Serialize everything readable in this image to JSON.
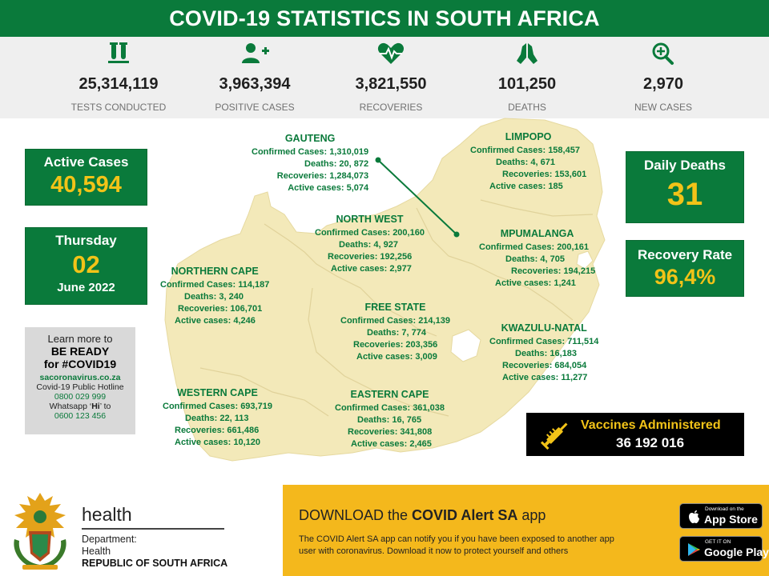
{
  "header": {
    "title": "COVID-19 STATISTICS IN SOUTH AFRICA"
  },
  "stats": [
    {
      "icon": "test-tubes-icon",
      "value": "25,314,119",
      "label": "TESTS CONDUCTED"
    },
    {
      "icon": "add-person-icon",
      "value": "3,963,394",
      "label": "POSITIVE CASES"
    },
    {
      "icon": "heartbeat-icon",
      "value": "3,821,550",
      "label": "RECOVERIES"
    },
    {
      "icon": "praying-hands-icon",
      "value": "101,250",
      "label": "DEATHS"
    },
    {
      "icon": "zoom-plus-icon",
      "value": "2,970",
      "label": "NEW CASES"
    }
  ],
  "active": {
    "title": "Active Cases",
    "value": "40,594"
  },
  "date": {
    "weekday": "Thursday",
    "day": "02",
    "month_year": "June  2022"
  },
  "daily_deaths": {
    "title": "Daily Deaths",
    "value": "31"
  },
  "recovery_rate": {
    "title": "Recovery Rate",
    "value": "96,4%"
  },
  "info": {
    "line1": "Learn more to",
    "line2": "BE READY",
    "line3": "for #COVID19",
    "site": "sacoronavirus.co.za",
    "hotline_label": "Covid-19 Public Hotline",
    "hotline": "0800 029 999",
    "whatsapp_prefix": "Whatsapp ‘",
    "whatsapp_word": "Hi",
    "whatsapp_suffix": "’ to",
    "whatsapp_number": "0600 123 456"
  },
  "provinces": {
    "gauteng": {
      "name": "GAUTENG",
      "confirmed": "Confirmed Cases: 1,310,019",
      "deaths": "Deaths: 20, 872",
      "recoveries": "Recoveries: 1,284,073",
      "active": "Active cases: 5,074"
    },
    "limpopo": {
      "name": "LIMPOPO",
      "confirmed": "Confirmed Cases: 158,457",
      "deaths": "Deaths: 4, 671",
      "recoveries": "Recoveries: 153,601",
      "active": "Active cases: 185"
    },
    "north_west": {
      "name": "NORTH WEST",
      "confirmed": "Confirmed Cases: 200,160",
      "deaths": "Deaths:  4, 927",
      "recoveries": "Recoveries: 192,256",
      "active": "Active cases: 2,977"
    },
    "mpumalanga": {
      "name": "MPUMALANGA",
      "confirmed": "Confirmed Cases: 200,161",
      "deaths": "Deaths: 4, 705",
      "recoveries": "Recoveries: 194,215",
      "active": "Active cases: 1,241"
    },
    "northern_cape": {
      "name": "NORTHERN CAPE",
      "confirmed": "Confirmed Cases: 114,187",
      "deaths": "Deaths: 3, 240",
      "recoveries": "Recoveries: 106,701",
      "active": "Active cases: 4,246"
    },
    "free_state": {
      "name": "FREE STATE",
      "confirmed": "Confirmed Cases: 214,139",
      "deaths": "Deaths:  7, 774",
      "recoveries": "Recoveries: 203,356",
      "active": "Active cases: 3,009"
    },
    "kwazulu_natal": {
      "name": "KWAZULU-NATAL",
      "confirmed": "Confirmed Cases: 711,514",
      "deaths": "Deaths: 16,183",
      "recoveries": "Recoveries: 684,054",
      "active": "Active cases: 11,277"
    },
    "western_cape": {
      "name": "WESTERN CAPE",
      "confirmed": "Confirmed Cases: 693,719",
      "deaths": "Deaths: 22, 113",
      "recoveries": "Recoveries: 661,486",
      "active": "Active cases: 10,120"
    },
    "eastern_cape": {
      "name": "EASTERN CAPE",
      "confirmed": "Confirmed Cases: 361,038",
      "deaths": "Deaths: 16, 765",
      "recoveries": "Recoveries: 341,808",
      "active": "Active cases: 2,465"
    }
  },
  "vaccines": {
    "title": "Vaccines Administered",
    "value": "36 192 016"
  },
  "department": {
    "word": "health",
    "line1": "Department:",
    "line2": "Health",
    "line3": "REPUBLIC OF SOUTH AFRICA"
  },
  "banner": {
    "headline_prefix": "DOWNLOAD the ",
    "headline_bold": "COVID Alert SA",
    "headline_suffix": " app",
    "text1": "The COVID Alert SA app can notify you if you have been exposed to another app",
    "text2": "user with coronavirus. Download it now to protect yourself and others",
    "app_store_small": "Download on the",
    "app_store_big": "App Store",
    "play_small": "GET IT ON",
    "play_big": "Google Play"
  },
  "colors": {
    "green": "#0a7a3b",
    "yellow": "#f2c318",
    "map": "#f3e9b9",
    "banner": "#f4b81c"
  }
}
